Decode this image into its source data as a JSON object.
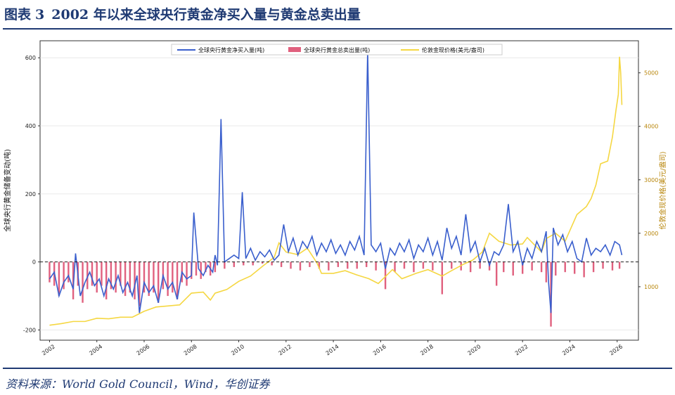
{
  "figure": {
    "title_prefix": "图表",
    "title_number": "3",
    "title": "2002 年以来全球央行黄金净买入量与黄金总卖出量",
    "source": "资料来源：World Gold Council，Wind，华创证券"
  },
  "chart_data": {
    "type": "bar+line",
    "ylabel_left": "全球央行黄金储备变动(吨)",
    "ylabel_right": "伦敦金现价格(美元/盎司)",
    "ylim_left": [
      -230,
      650
    ],
    "ylim_right": [
      0,
      5600
    ],
    "xlim": [
      2001.6,
      2026.9
    ],
    "left_ticks": [
      -200,
      0,
      200,
      400,
      600
    ],
    "right_ticks": [
      1000,
      2000,
      3000,
      4000,
      5000
    ],
    "x_ticks": [
      "2002",
      "2004",
      "2006",
      "2008",
      "2010",
      "2012",
      "2014",
      "2016",
      "2018",
      "2020",
      "2022",
      "2024",
      "2026"
    ],
    "zero_line": "dashed",
    "legend_position": "top-center",
    "colors": {
      "net": "#3a5fcd",
      "sales": "#e0607e",
      "gold": "#f5d742",
      "right_axis": "#b8860b"
    },
    "series": [
      {
        "name": "全球央行黄金净买入量(吨)",
        "axis": "left",
        "kind": "line",
        "color": "#3a5fcd",
        "points": [
          [
            2002.0,
            -50
          ],
          [
            2002.2,
            -30
          ],
          [
            2002.4,
            -100
          ],
          [
            2002.6,
            -60
          ],
          [
            2002.8,
            -40
          ],
          [
            2003.0,
            -80
          ],
          [
            2003.1,
            25
          ],
          [
            2003.3,
            -100
          ],
          [
            2003.5,
            -60
          ],
          [
            2003.7,
            -30
          ],
          [
            2003.9,
            -70
          ],
          [
            2004.1,
            -50
          ],
          [
            2004.3,
            -100
          ],
          [
            2004.5,
            -50
          ],
          [
            2004.7,
            -80
          ],
          [
            2004.9,
            -40
          ],
          [
            2005.1,
            -90
          ],
          [
            2005.3,
            -60
          ],
          [
            2005.5,
            -100
          ],
          [
            2005.7,
            -40
          ],
          [
            2005.8,
            -150
          ],
          [
            2006.0,
            -60
          ],
          [
            2006.2,
            -90
          ],
          [
            2006.4,
            -70
          ],
          [
            2006.6,
            -120
          ],
          [
            2006.8,
            -40
          ],
          [
            2007.0,
            -80
          ],
          [
            2007.2,
            -60
          ],
          [
            2007.4,
            -110
          ],
          [
            2007.6,
            -30
          ],
          [
            2007.8,
            -50
          ],
          [
            2008.0,
            -40
          ],
          [
            2008.1,
            145
          ],
          [
            2008.3,
            -20
          ],
          [
            2008.5,
            -40
          ],
          [
            2008.7,
            -10
          ],
          [
            2008.9,
            -30
          ],
          [
            2009.0,
            20
          ],
          [
            2009.1,
            -10
          ],
          [
            2009.25,
            420
          ],
          [
            2009.4,
            0
          ],
          [
            2009.6,
            10
          ],
          [
            2009.8,
            20
          ],
          [
            2010.0,
            10
          ],
          [
            2010.15,
            205
          ],
          [
            2010.3,
            10
          ],
          [
            2010.5,
            40
          ],
          [
            2010.7,
            5
          ],
          [
            2010.9,
            30
          ],
          [
            2011.1,
            15
          ],
          [
            2011.3,
            35
          ],
          [
            2011.5,
            5
          ],
          [
            2011.7,
            20
          ],
          [
            2011.9,
            110
          ],
          [
            2012.1,
            30
          ],
          [
            2012.3,
            70
          ],
          [
            2012.5,
            20
          ],
          [
            2012.7,
            60
          ],
          [
            2012.9,
            40
          ],
          [
            2013.1,
            75
          ],
          [
            2013.3,
            20
          ],
          [
            2013.5,
            55
          ],
          [
            2013.7,
            30
          ],
          [
            2013.9,
            65
          ],
          [
            2014.1,
            25
          ],
          [
            2014.3,
            50
          ],
          [
            2014.5,
            20
          ],
          [
            2014.7,
            60
          ],
          [
            2014.9,
            35
          ],
          [
            2015.1,
            75
          ],
          [
            2015.3,
            20
          ],
          [
            2015.45,
            620
          ],
          [
            2015.6,
            50
          ],
          [
            2015.8,
            30
          ],
          [
            2016.0,
            55
          ],
          [
            2016.2,
            -20
          ],
          [
            2016.4,
            40
          ],
          [
            2016.6,
            20
          ],
          [
            2016.8,
            55
          ],
          [
            2017.0,
            30
          ],
          [
            2017.2,
            65
          ],
          [
            2017.4,
            10
          ],
          [
            2017.6,
            50
          ],
          [
            2017.8,
            30
          ],
          [
            2018.0,
            70
          ],
          [
            2018.2,
            20
          ],
          [
            2018.4,
            60
          ],
          [
            2018.6,
            5
          ],
          [
            2018.8,
            100
          ],
          [
            2019.0,
            40
          ],
          [
            2019.2,
            75
          ],
          [
            2019.4,
            20
          ],
          [
            2019.6,
            140
          ],
          [
            2019.8,
            30
          ],
          [
            2020.0,
            60
          ],
          [
            2020.2,
            0
          ],
          [
            2020.4,
            40
          ],
          [
            2020.6,
            -10
          ],
          [
            2020.8,
            30
          ],
          [
            2021.0,
            20
          ],
          [
            2021.2,
            50
          ],
          [
            2021.4,
            170
          ],
          [
            2021.6,
            30
          ],
          [
            2021.8,
            60
          ],
          [
            2022.0,
            -10
          ],
          [
            2022.2,
            40
          ],
          [
            2022.4,
            10
          ],
          [
            2022.6,
            60
          ],
          [
            2022.8,
            30
          ],
          [
            2023.0,
            90
          ],
          [
            2023.1,
            -60
          ],
          [
            2023.2,
            -150
          ],
          [
            2023.3,
            100
          ],
          [
            2023.5,
            50
          ],
          [
            2023.7,
            80
          ],
          [
            2023.9,
            30
          ],
          [
            2024.1,
            60
          ],
          [
            2024.3,
            10
          ],
          [
            2024.5,
            0
          ],
          [
            2024.7,
            70
          ],
          [
            2024.9,
            20
          ],
          [
            2025.1,
            40
          ],
          [
            2025.3,
            30
          ],
          [
            2025.5,
            50
          ],
          [
            2025.7,
            20
          ],
          [
            2025.9,
            60
          ],
          [
            2026.1,
            50
          ],
          [
            2026.2,
            20
          ]
        ]
      },
      {
        "name": "全球央行黄金总卖出量(吨)",
        "axis": "left",
        "kind": "bar",
        "color": "#e0607e",
        "points": [
          [
            2002.0,
            -60
          ],
          [
            2002.2,
            -70
          ],
          [
            2002.4,
            -100
          ],
          [
            2002.6,
            -80
          ],
          [
            2002.8,
            -60
          ],
          [
            2003.0,
            -110
          ],
          [
            2003.2,
            -70
          ],
          [
            2003.4,
            -120
          ],
          [
            2003.6,
            -80
          ],
          [
            2003.8,
            -70
          ],
          [
            2004.0,
            -90
          ],
          [
            2004.2,
            -70
          ],
          [
            2004.4,
            -110
          ],
          [
            2004.6,
            -80
          ],
          [
            2004.8,
            -90
          ],
          [
            2005.0,
            -70
          ],
          [
            2005.2,
            -100
          ],
          [
            2005.4,
            -90
          ],
          [
            2005.6,
            -110
          ],
          [
            2005.8,
            -130
          ],
          [
            2006.0,
            -90
          ],
          [
            2006.2,
            -100
          ],
          [
            2006.4,
            -90
          ],
          [
            2006.6,
            -120
          ],
          [
            2006.8,
            -80
          ],
          [
            2007.0,
            -100
          ],
          [
            2007.2,
            -90
          ],
          [
            2007.4,
            -110
          ],
          [
            2007.6,
            -60
          ],
          [
            2007.8,
            -70
          ],
          [
            2008.0,
            -50
          ],
          [
            2008.2,
            -40
          ],
          [
            2008.4,
            -50
          ],
          [
            2008.6,
            -30
          ],
          [
            2008.8,
            -40
          ],
          [
            2009.0,
            -30
          ],
          [
            2009.4,
            -20
          ],
          [
            2009.8,
            -15
          ],
          [
            2010.2,
            -10
          ],
          [
            2010.6,
            -10
          ],
          [
            2011.0,
            -5
          ],
          [
            2011.4,
            -10
          ],
          [
            2011.8,
            -15
          ],
          [
            2012.2,
            -20
          ],
          [
            2012.6,
            -25
          ],
          [
            2013.0,
            -15
          ],
          [
            2013.4,
            -20
          ],
          [
            2013.8,
            -25
          ],
          [
            2014.2,
            -15
          ],
          [
            2014.6,
            -20
          ],
          [
            2015.0,
            -20
          ],
          [
            2015.4,
            -15
          ],
          [
            2015.8,
            -25
          ],
          [
            2016.2,
            -80
          ],
          [
            2016.6,
            -30
          ],
          [
            2017.0,
            -20
          ],
          [
            2017.4,
            -30
          ],
          [
            2017.8,
            -20
          ],
          [
            2018.2,
            -25
          ],
          [
            2018.6,
            -95
          ],
          [
            2019.0,
            -20
          ],
          [
            2019.4,
            -25
          ],
          [
            2019.8,
            -30
          ],
          [
            2020.2,
            -20
          ],
          [
            2020.6,
            -25
          ],
          [
            2020.9,
            -70
          ],
          [
            2021.2,
            -30
          ],
          [
            2021.6,
            -40
          ],
          [
            2022.0,
            -35
          ],
          [
            2022.4,
            -25
          ],
          [
            2022.8,
            -30
          ],
          [
            2023.0,
            -60
          ],
          [
            2023.2,
            -190
          ],
          [
            2023.4,
            -40
          ],
          [
            2023.8,
            -30
          ],
          [
            2024.2,
            -35
          ],
          [
            2024.6,
            -45
          ],
          [
            2025.0,
            -30
          ],
          [
            2025.4,
            -20
          ],
          [
            2025.8,
            -25
          ],
          [
            2026.1,
            -20
          ]
        ]
      },
      {
        "name": "伦敦金现价格(美元/盎司)",
        "axis": "right",
        "kind": "line",
        "color": "#f5d742",
        "points": [
          [
            2002.0,
            280
          ],
          [
            2002.5,
            310
          ],
          [
            2003.0,
            350
          ],
          [
            2003.5,
            350
          ],
          [
            2004.0,
            410
          ],
          [
            2004.5,
            400
          ],
          [
            2005.0,
            430
          ],
          [
            2005.5,
            430
          ],
          [
            2006.0,
            540
          ],
          [
            2006.5,
            620
          ],
          [
            2007.0,
            640
          ],
          [
            2007.5,
            660
          ],
          [
            2008.0,
            880
          ],
          [
            2008.5,
            900
          ],
          [
            2008.8,
            750
          ],
          [
            2009.0,
            880
          ],
          [
            2009.5,
            950
          ],
          [
            2010.0,
            1100
          ],
          [
            2010.5,
            1200
          ],
          [
            2011.0,
            1380
          ],
          [
            2011.5,
            1550
          ],
          [
            2011.7,
            1820
          ],
          [
            2012.0,
            1650
          ],
          [
            2012.5,
            1600
          ],
          [
            2012.9,
            1720
          ],
          [
            2013.3,
            1450
          ],
          [
            2013.5,
            1250
          ],
          [
            2014.0,
            1250
          ],
          [
            2014.5,
            1300
          ],
          [
            2015.0,
            1220
          ],
          [
            2015.5,
            1150
          ],
          [
            2015.9,
            1060
          ],
          [
            2016.5,
            1320
          ],
          [
            2016.9,
            1150
          ],
          [
            2017.5,
            1250
          ],
          [
            2018.0,
            1320
          ],
          [
            2018.6,
            1200
          ],
          [
            2019.0,
            1300
          ],
          [
            2019.5,
            1420
          ],
          [
            2019.9,
            1500
          ],
          [
            2020.3,
            1650
          ],
          [
            2020.6,
            2000
          ],
          [
            2021.0,
            1850
          ],
          [
            2021.5,
            1780
          ],
          [
            2022.0,
            1800
          ],
          [
            2022.2,
            1920
          ],
          [
            2022.8,
            1650
          ],
          [
            2023.0,
            1900
          ],
          [
            2023.4,
            2000
          ],
          [
            2023.8,
            1850
          ],
          [
            2024.0,
            2050
          ],
          [
            2024.3,
            2350
          ],
          [
            2024.7,
            2500
          ],
          [
            2024.9,
            2650
          ],
          [
            2025.1,
            2900
          ],
          [
            2025.3,
            3300
          ],
          [
            2025.6,
            3350
          ],
          [
            2025.8,
            3800
          ],
          [
            2025.95,
            4300
          ],
          [
            2026.05,
            4600
          ],
          [
            2026.1,
            5300
          ],
          [
            2026.15,
            5000
          ],
          [
            2026.2,
            4400
          ]
        ]
      }
    ]
  }
}
